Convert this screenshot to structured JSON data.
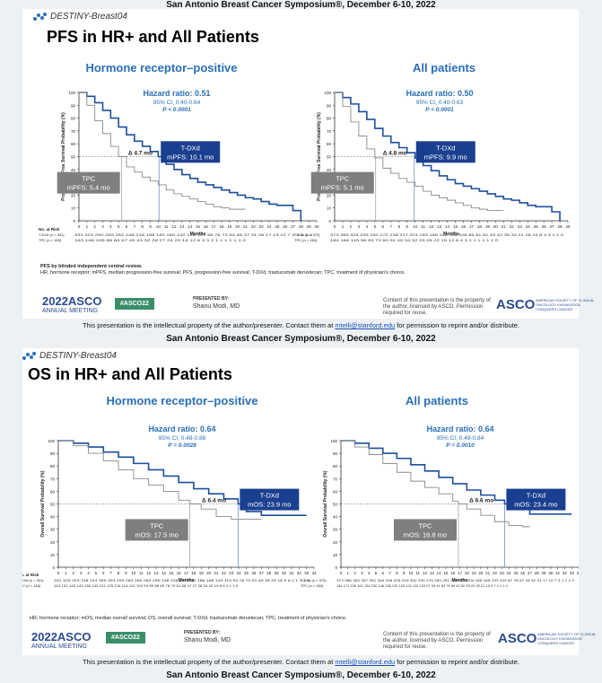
{
  "header": {
    "banner": "San Antonio Breast Cancer Symposium®, December 6-10, 2022",
    "ip_notice_prefix": "This presentation is the intellectual property of the author/presenter. Contact them at ",
    "ip_email": "mtelli@stanford.edu",
    "ip_notice_suffix": " for permission to reprint and/or distribute."
  },
  "slides": [
    {
      "study": "DESTINY-Breast04",
      "title": "PFS in HR+ and All Patients",
      "abbrev_note": "PFS by blinded independent central review.",
      "abbrev_line": "HR, hormone receptor; mPFS, median progression-free survival; PFS, progression-free survival; T-DXd, trastuzumab deruxtecan; TPC, treatment of physician's choice."
    },
    {
      "study": "DESTINY-Breast04",
      "title": "OS in HR+ and All Patients",
      "abbrev_note": "",
      "abbrev_line": "HR, hormone receptor; mOS, median overall survival; OS, overall survival; T-DXd, trastuzumab deruxtecan; TPC, treatment of physician's choice."
    }
  ],
  "footer": {
    "meeting_year": "2022",
    "meeting_name": "ASCO",
    "meeting_sub": "ANNUAL MEETING",
    "hashtag": "#ASCO22",
    "presented_by": "PRESENTED BY:",
    "presenter": "Shanu Modi, MD",
    "copyright": "Content of this presentation is the property of the author, licensed by ASCO. Permission required for reuse.",
    "asco_right": "ASCO",
    "asco_tagline": "AMERICAN SOCIETY OF CLINICAL ONCOLOGY KNOWLEDGE CONQUERS CANCER"
  },
  "colors": {
    "tdxd": "#1f4e9e",
    "tpc": "#8a8a8a",
    "subtitle_blue": "#2a6fb7",
    "hr_blue": "#2a6fb7",
    "tpc_box": "#7f7f7f",
    "tdxd_box": "#1a3f8f"
  },
  "chart_data": [
    {
      "type": "line",
      "panel": "PFS",
      "subtitle": "Hormone receptor–positive",
      "ylabel": "Progression-Free Survival Probability (%)",
      "xlabel": "Months",
      "ylim": [
        0,
        100
      ],
      "yticks": [
        0,
        10,
        20,
        30,
        40,
        50,
        60,
        70,
        80,
        90,
        100
      ],
      "xticks": [
        0,
        1,
        2,
        3,
        4,
        5,
        6,
        7,
        8,
        9,
        10,
        11,
        12,
        13,
        14,
        15,
        16,
        17,
        18,
        19,
        20,
        21,
        22,
        23,
        24,
        25,
        26,
        27,
        28,
        29,
        30
      ],
      "xmax": 30,
      "hazard_ratio": "Hazard ratio: 0.51",
      "ci": "95% CI, 0.40-0.64",
      "p_value": "P < 0.0001",
      "delta": "Δ 4.7 mo",
      "tdxd_label": "T-DXd",
      "tdxd_median_label": "mPFS: 10.1 mo",
      "tdxd_median": 10.1,
      "tpc_label": "TPC",
      "tpc_median_label": "mPFS: 5.4 mo",
      "tpc_median": 5.4,
      "series": [
        {
          "name": "T-DXd",
          "x": [
            0,
            1,
            2,
            3,
            4,
            5,
            6,
            7,
            8,
            9,
            10,
            11,
            12,
            13,
            14,
            15,
            16,
            17,
            18,
            19,
            20,
            21,
            22,
            23,
            24,
            25,
            26,
            27,
            28
          ],
          "values": [
            100,
            97,
            92,
            86,
            80,
            73,
            67,
            62,
            58,
            54,
            50,
            44,
            40,
            36,
            33,
            30,
            28,
            26,
            24,
            22,
            20,
            18,
            17,
            15,
            13,
            12,
            12,
            8,
            0
          ]
        },
        {
          "name": "TPC",
          "x": [
            0,
            1,
            2,
            3,
            4,
            5,
            6,
            7,
            8,
            9,
            10,
            11,
            12,
            13,
            14,
            15,
            16,
            17,
            18,
            19,
            20,
            21
          ],
          "values": [
            100,
            90,
            78,
            68,
            58,
            50,
            42,
            38,
            34,
            31,
            28,
            24,
            21,
            19,
            17,
            15,
            13,
            11,
            10,
            9,
            9,
            9
          ]
        }
      ],
      "risk_title": "No. at Risk",
      "risk_tdxd_label": "T-DXd (n = 331)",
      "risk_tdxd": "331 324 290 265 262 248 218 198 182 165 142 128 107 96 76 73 54 46 37 31 26 17 14 12 7 4 4 1 1 0",
      "risk_tpc_label": "TPC (n = 163)",
      "risk_tpc": "163 146 105 85 84 67 49 43 32 26 27 24 20 14 12 6 4 3 2 1 1 1 1 1 1 0"
    },
    {
      "type": "line",
      "panel": "PFS",
      "subtitle": "All patients",
      "ylabel": "Progression-Free Survival Probability (%)",
      "xlabel": "Months",
      "ylim": [
        0,
        100
      ],
      "yticks": [
        0,
        10,
        20,
        30,
        40,
        50,
        60,
        70,
        80,
        90,
        100
      ],
      "xticks": [
        0,
        1,
        2,
        3,
        4,
        5,
        6,
        7,
        8,
        9,
        10,
        11,
        12,
        13,
        14,
        15,
        16,
        17,
        18,
        19,
        20,
        21,
        22,
        23,
        24,
        25,
        26,
        27,
        28,
        29
      ],
      "xmax": 29,
      "hazard_ratio": "Hazard ratio: 0.50",
      "ci": "95% CI, 0.40-0.63",
      "p_value": "P < 0.0001",
      "delta": "Δ 4.8 mo",
      "tdxd_label": "T-DXd",
      "tdxd_median_label": "mPFS: 9.9 mo",
      "tdxd_median": 9.9,
      "tpc_label": "TPC",
      "tpc_median_label": "mPFS: 5.1 mo",
      "tpc_median": 5.1,
      "series": [
        {
          "name": "T-DXd",
          "x": [
            0,
            1,
            2,
            3,
            4,
            5,
            6,
            7,
            8,
            9,
            10,
            11,
            12,
            13,
            14,
            15,
            16,
            17,
            18,
            19,
            20,
            21,
            22,
            23,
            24,
            25,
            26,
            27,
            28
          ],
          "values": [
            100,
            96,
            91,
            85,
            79,
            72,
            66,
            61,
            57,
            53,
            49,
            43,
            39,
            35,
            32,
            29,
            27,
            25,
            23,
            21,
            19,
            17,
            16,
            14,
            12,
            11,
            11,
            7,
            0
          ]
        },
        {
          "name": "TPC",
          "x": [
            0,
            1,
            2,
            3,
            4,
            5,
            6,
            7,
            8,
            9,
            10,
            11,
            12,
            13,
            14,
            15,
            16,
            17,
            18,
            19,
            20,
            21
          ],
          "values": [
            100,
            89,
            77,
            66,
            56,
            49,
            41,
            37,
            33,
            30,
            27,
            23,
            20,
            18,
            16,
            14,
            12,
            10,
            9,
            8,
            8,
            8
          ]
        }
      ],
      "risk_title": "",
      "risk_tdxd_label": "T-DXd (n = 373)",
      "risk_tdxd": "373 365 325 295 290 272 238 217 201 183 156 142 118 106 85 81 61 53 42 35 32 21 18 15 8 4 4 1 1 0",
      "risk_tpc_label": "TPC (n = 184)",
      "risk_tpc": "184 166 119 96 93 73 60 51 40 34 32 29 26 22 15 13 6 4 3 1 1 1 1 1 1 0"
    },
    {
      "type": "line",
      "panel": "OS",
      "subtitle": "Hormone receptor–positive",
      "ylabel": "Overall Survival Probability (%)",
      "xlabel": "Months",
      "ylim": [
        0,
        100
      ],
      "yticks": [
        0,
        10,
        20,
        30,
        40,
        50,
        60,
        70,
        80,
        90,
        100
      ],
      "xticks": [
        0,
        1,
        2,
        3,
        4,
        5,
        6,
        7,
        8,
        9,
        10,
        11,
        12,
        13,
        14,
        15,
        16,
        17,
        18,
        19,
        20,
        21,
        22,
        23,
        24,
        25,
        26,
        27,
        28,
        29,
        30,
        31,
        32,
        33,
        34
      ],
      "xmax": 34,
      "hazard_ratio": "Hazard ratio: 0.64",
      "ci": "95% CI, 0.48-0.86",
      "p_value": "P = 0.0028",
      "delta": "Δ 6.4 mo",
      "tdxd_label": "T-DXd",
      "tdxd_median_label": "mOS: 23.9 mo",
      "tdxd_median": 23.9,
      "tpc_label": "TPC",
      "tpc_median_label": "mOS: 17.5 mo",
      "tpc_median": 17.5,
      "series": [
        {
          "name": "T-DXd",
          "x": [
            0,
            2,
            4,
            6,
            8,
            10,
            12,
            14,
            16,
            18,
            20,
            22,
            23.9,
            25,
            27,
            29,
            31,
            33
          ],
          "values": [
            100,
            98,
            95,
            91,
            87,
            82,
            77,
            72,
            67,
            62,
            58,
            54,
            50,
            44,
            41,
            41,
            41,
            41
          ]
        },
        {
          "name": "TPC",
          "x": [
            0,
            2,
            4,
            6,
            8,
            10,
            12,
            14,
            16,
            17.5,
            19,
            21,
            23,
            25,
            27
          ],
          "values": [
            100,
            96,
            90,
            84,
            77,
            70,
            65,
            60,
            53,
            50,
            46,
            40,
            38,
            38,
            38
          ]
        }
      ],
      "risk_title": "No. at Risk",
      "risk_tdxd_label": "T-DXd (n = 331)",
      "risk_tdxd": "331 325 323 318 314 309 303 293 283 269 260 250 238 228 217 202 186 168 149 119 93 78 70 51 40 38 29 16 9 6 2 1 1 1 0",
      "risk_tpc_label": "TPC (n = 163)",
      "risk_tpc": "163 151 145 143 136 133 131 125 118 114 110 100 94 89 86 85 78 70 61 58 47 37 28 24 20 15 8 6 3 1 1 0"
    },
    {
      "type": "line",
      "panel": "OS",
      "subtitle": "All patients",
      "ylabel": "Overall Survival Probability (%)",
      "xlabel": "Months",
      "ylim": [
        0,
        100
      ],
      "yticks": [
        0,
        10,
        20,
        30,
        40,
        50,
        60,
        70,
        80,
        90,
        100
      ],
      "xticks": [
        0,
        1,
        2,
        3,
        4,
        5,
        6,
        7,
        8,
        9,
        10,
        11,
        12,
        13,
        14,
        15,
        16,
        17,
        18,
        19,
        20,
        21,
        22,
        23,
        24,
        25,
        26,
        27,
        28,
        29,
        30,
        31,
        32,
        33,
        34
      ],
      "xmax": 34,
      "hazard_ratio": "Hazard ratio: 0.64",
      "ci": "95% CI, 0.49-0.84",
      "p_value": "P = 0.0010",
      "delta": "Δ 6.6 mo",
      "tdxd_label": "T-DXd",
      "tdxd_median_label": "mOS: 23.4 mo",
      "tdxd_median": 23.4,
      "tpc_label": "TPC",
      "tpc_median_label": "mOS: 16.8 mo",
      "tpc_median": 16.8,
      "series": [
        {
          "name": "T-DXd",
          "x": [
            0,
            2,
            4,
            6,
            8,
            10,
            12,
            14,
            16,
            18,
            20,
            22,
            23.4,
            25,
            27,
            29,
            31,
            33
          ],
          "values": [
            100,
            98,
            94,
            90,
            86,
            81,
            76,
            71,
            66,
            61,
            57,
            53,
            50,
            46,
            42,
            42,
            42,
            42
          ]
        },
        {
          "name": "TPC",
          "x": [
            0,
            2,
            4,
            6,
            8,
            10,
            12,
            14,
            16,
            16.8,
            18,
            20,
            22,
            24,
            26,
            27
          ],
          "values": [
            100,
            95,
            89,
            82,
            75,
            68,
            63,
            58,
            52,
            50,
            46,
            41,
            36,
            33,
            32,
            32
          ]
        }
      ],
      "risk_title": "",
      "risk_tdxd_label": "T-DXd (n = 373)",
      "risk_tdxd": "373 366 363 357 351 344 338 328 316 302 290 276 263 251 238 222 204 185 165 133 103 87 78 57 44 42 31 17 10 7 3 1 1 1 0",
      "risk_tpc_label": "TPC (n = 184)",
      "risk_tpc": "184 171 165 161 154 150 146 138 132 126 121 110 103 97 93 91 84 76 66 62 50 39 29 25 21 16 9 7 4 1 1 0"
    }
  ]
}
